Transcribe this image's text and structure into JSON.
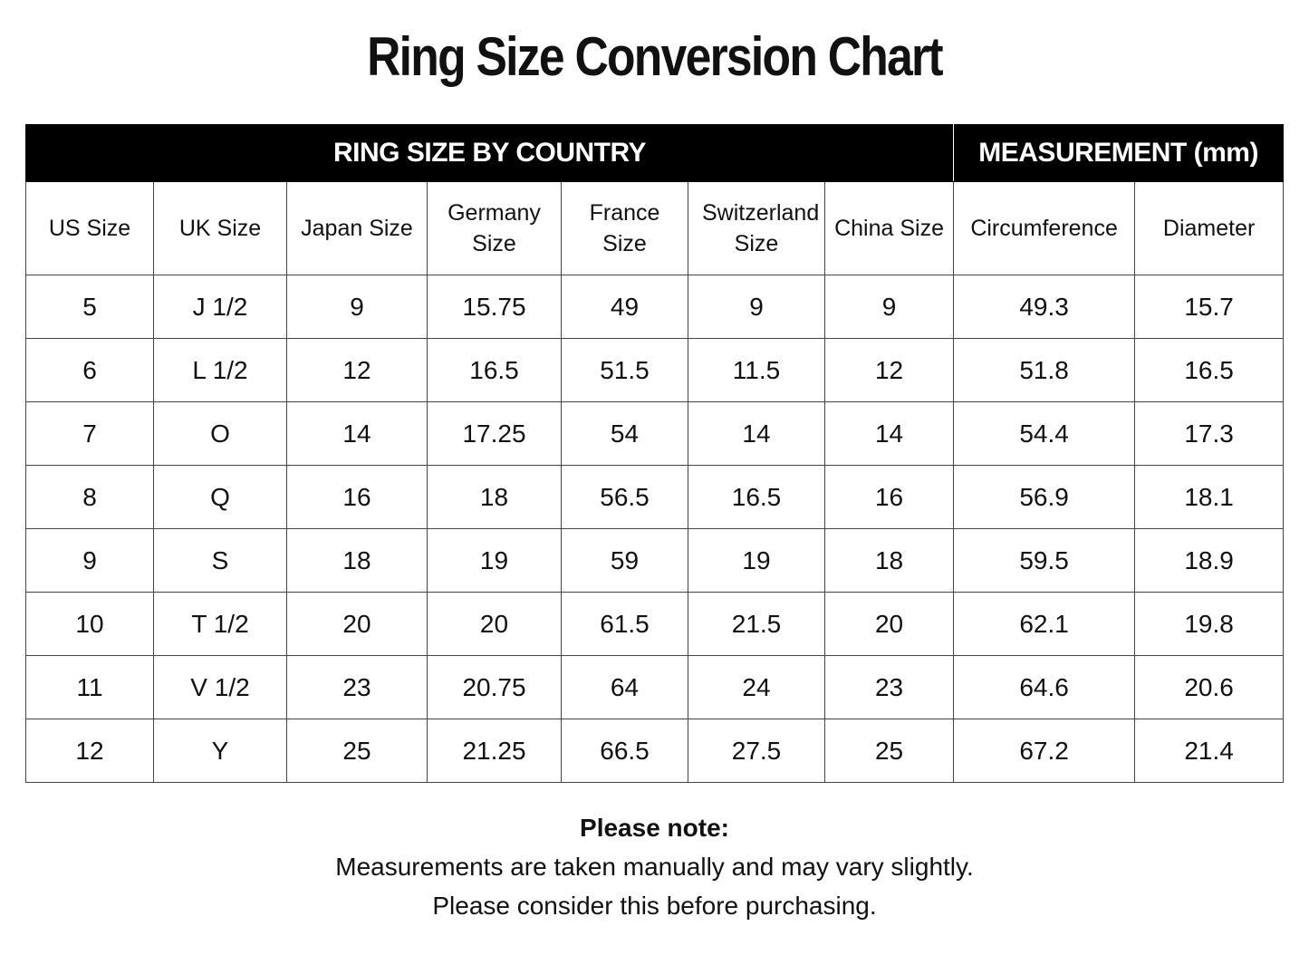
{
  "title": "Ring Size Conversion Chart",
  "table": {
    "groups": [
      "RING SIZE BY COUNTRY",
      "MEASUREMENT (mm)"
    ],
    "columns": [
      "US Size",
      "UK Size",
      "Japan Size",
      "Germany Size",
      "France Size",
      "Switzerland Size",
      "China Size",
      "Circumference",
      "Diameter"
    ],
    "rows": [
      [
        "5",
        "J 1/2",
        "9",
        "15.75",
        "49",
        "9",
        "9",
        "49.3",
        "15.7"
      ],
      [
        "6",
        "L 1/2",
        "12",
        "16.5",
        "51.5",
        "11.5",
        "12",
        "51.8",
        "16.5"
      ],
      [
        "7",
        "O",
        "14",
        "17.25",
        "54",
        "14",
        "14",
        "54.4",
        "17.3"
      ],
      [
        "8",
        "Q",
        "16",
        "18",
        "56.5",
        "16.5",
        "16",
        "56.9",
        "18.1"
      ],
      [
        "9",
        "S",
        "18",
        "19",
        "59",
        "19",
        "18",
        "59.5",
        "18.9"
      ],
      [
        "10",
        "T 1/2",
        "20",
        "20",
        "61.5",
        "21.5",
        "20",
        "62.1",
        "19.8"
      ],
      [
        "11",
        "V 1/2",
        "23",
        "20.75",
        "64",
        "24",
        "23",
        "64.6",
        "20.6"
      ],
      [
        "12",
        "Y",
        "25",
        "21.25",
        "66.5",
        "27.5",
        "25",
        "67.2",
        "21.4"
      ]
    ]
  },
  "note": {
    "heading": "Please note:",
    "lines": [
      "Measurements are taken manually and may vary slightly.",
      "Please consider this before purchasing."
    ]
  }
}
